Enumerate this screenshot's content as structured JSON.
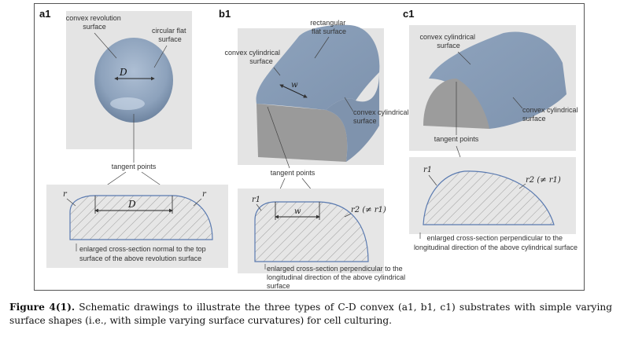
{
  "panels": {
    "a1": {
      "letter": "a1",
      "label_revolution": [
        "convex revolution",
        "surface"
      ],
      "label_flat": [
        "circular flat",
        "surface"
      ],
      "dim_top": "D",
      "tangent": "tangent points",
      "r_left": "r",
      "r_right": "r",
      "dim_bottom": "D",
      "cross_section": [
        "enlarged cross-section normal to the top",
        "surface of the above revolution surface"
      ]
    },
    "b1": {
      "letter": "b1",
      "label_rect": [
        "rectangular",
        "flat surface"
      ],
      "label_convex_left": [
        "convex cylindrical",
        "surface"
      ],
      "label_convex_right": [
        "convex cylindrical",
        "surface"
      ],
      "dim_top": "w",
      "tangent": "tangent points",
      "r1": "r1",
      "r2": "r2 (≠ r1)",
      "dim_bottom": "w",
      "cross_section": [
        "enlarged cross-section perpendicular to the",
        "longitudinal direction of the above cylindrical",
        "surface"
      ]
    },
    "c1": {
      "letter": "c1",
      "label_convex_top": [
        "convex cylindrical",
        "surface"
      ],
      "label_convex_right": [
        "convex cylindrical",
        "surface"
      ],
      "tangent": "tangent points",
      "r1": "r1",
      "r2": "r2 (≠ r1)",
      "cross_section": [
        "enlarged cross-section perpendicular to the",
        "longitudinal direction of the above cylindrical surface"
      ]
    }
  },
  "caption": {
    "bold": "Figure 4(1).",
    "text": " Schematic drawings to illustrate the three types of C-D convex (a1, b1, c1) substrates with simple varying surface shapes (i.e., with simple varying surface curvatures) for cell culturing."
  }
}
